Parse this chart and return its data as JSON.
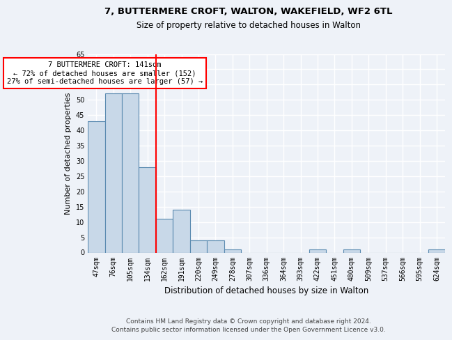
{
  "title1": "7, BUTTERMERE CROFT, WALTON, WAKEFIELD, WF2 6TL",
  "title2": "Size of property relative to detached houses in Walton",
  "xlabel": "Distribution of detached houses by size in Walton",
  "ylabel": "Number of detached properties",
  "categories": [
    "47sqm",
    "76sqm",
    "105sqm",
    "134sqm",
    "162sqm",
    "191sqm",
    "220sqm",
    "249sqm",
    "278sqm",
    "307sqm",
    "336sqm",
    "364sqm",
    "393sqm",
    "422sqm",
    "451sqm",
    "480sqm",
    "509sqm",
    "537sqm",
    "566sqm",
    "595sqm",
    "624sqm"
  ],
  "values": [
    43,
    52,
    52,
    28,
    11,
    14,
    4,
    4,
    1,
    0,
    0,
    0,
    0,
    1,
    0,
    1,
    0,
    0,
    0,
    0,
    1
  ],
  "bar_color": "#c8d8e8",
  "bar_edge_color": "#5a8ab0",
  "property_line_x": 3.5,
  "annotation_text": "7 BUTTERMERE CROFT: 141sqm\n← 72% of detached houses are smaller (152)\n27% of semi-detached houses are larger (57) →",
  "annotation_box_color": "white",
  "annotation_box_edge": "red",
  "vline_color": "red",
  "ylim": [
    0,
    65
  ],
  "yticks": [
    0,
    5,
    10,
    15,
    20,
    25,
    30,
    35,
    40,
    45,
    50,
    55,
    60,
    65
  ],
  "footer1": "Contains HM Land Registry data © Crown copyright and database right 2024.",
  "footer2": "Contains public sector information licensed under the Open Government Licence v3.0.",
  "bg_color": "#eef2f8",
  "plot_bg_color": "#eef2f8",
  "grid_color": "white",
  "title1_fontsize": 9.5,
  "title2_fontsize": 8.5,
  "axis_label_fontsize": 8,
  "tick_fontsize": 7,
  "annotation_fontsize": 7.5,
  "footer_fontsize": 6.5
}
